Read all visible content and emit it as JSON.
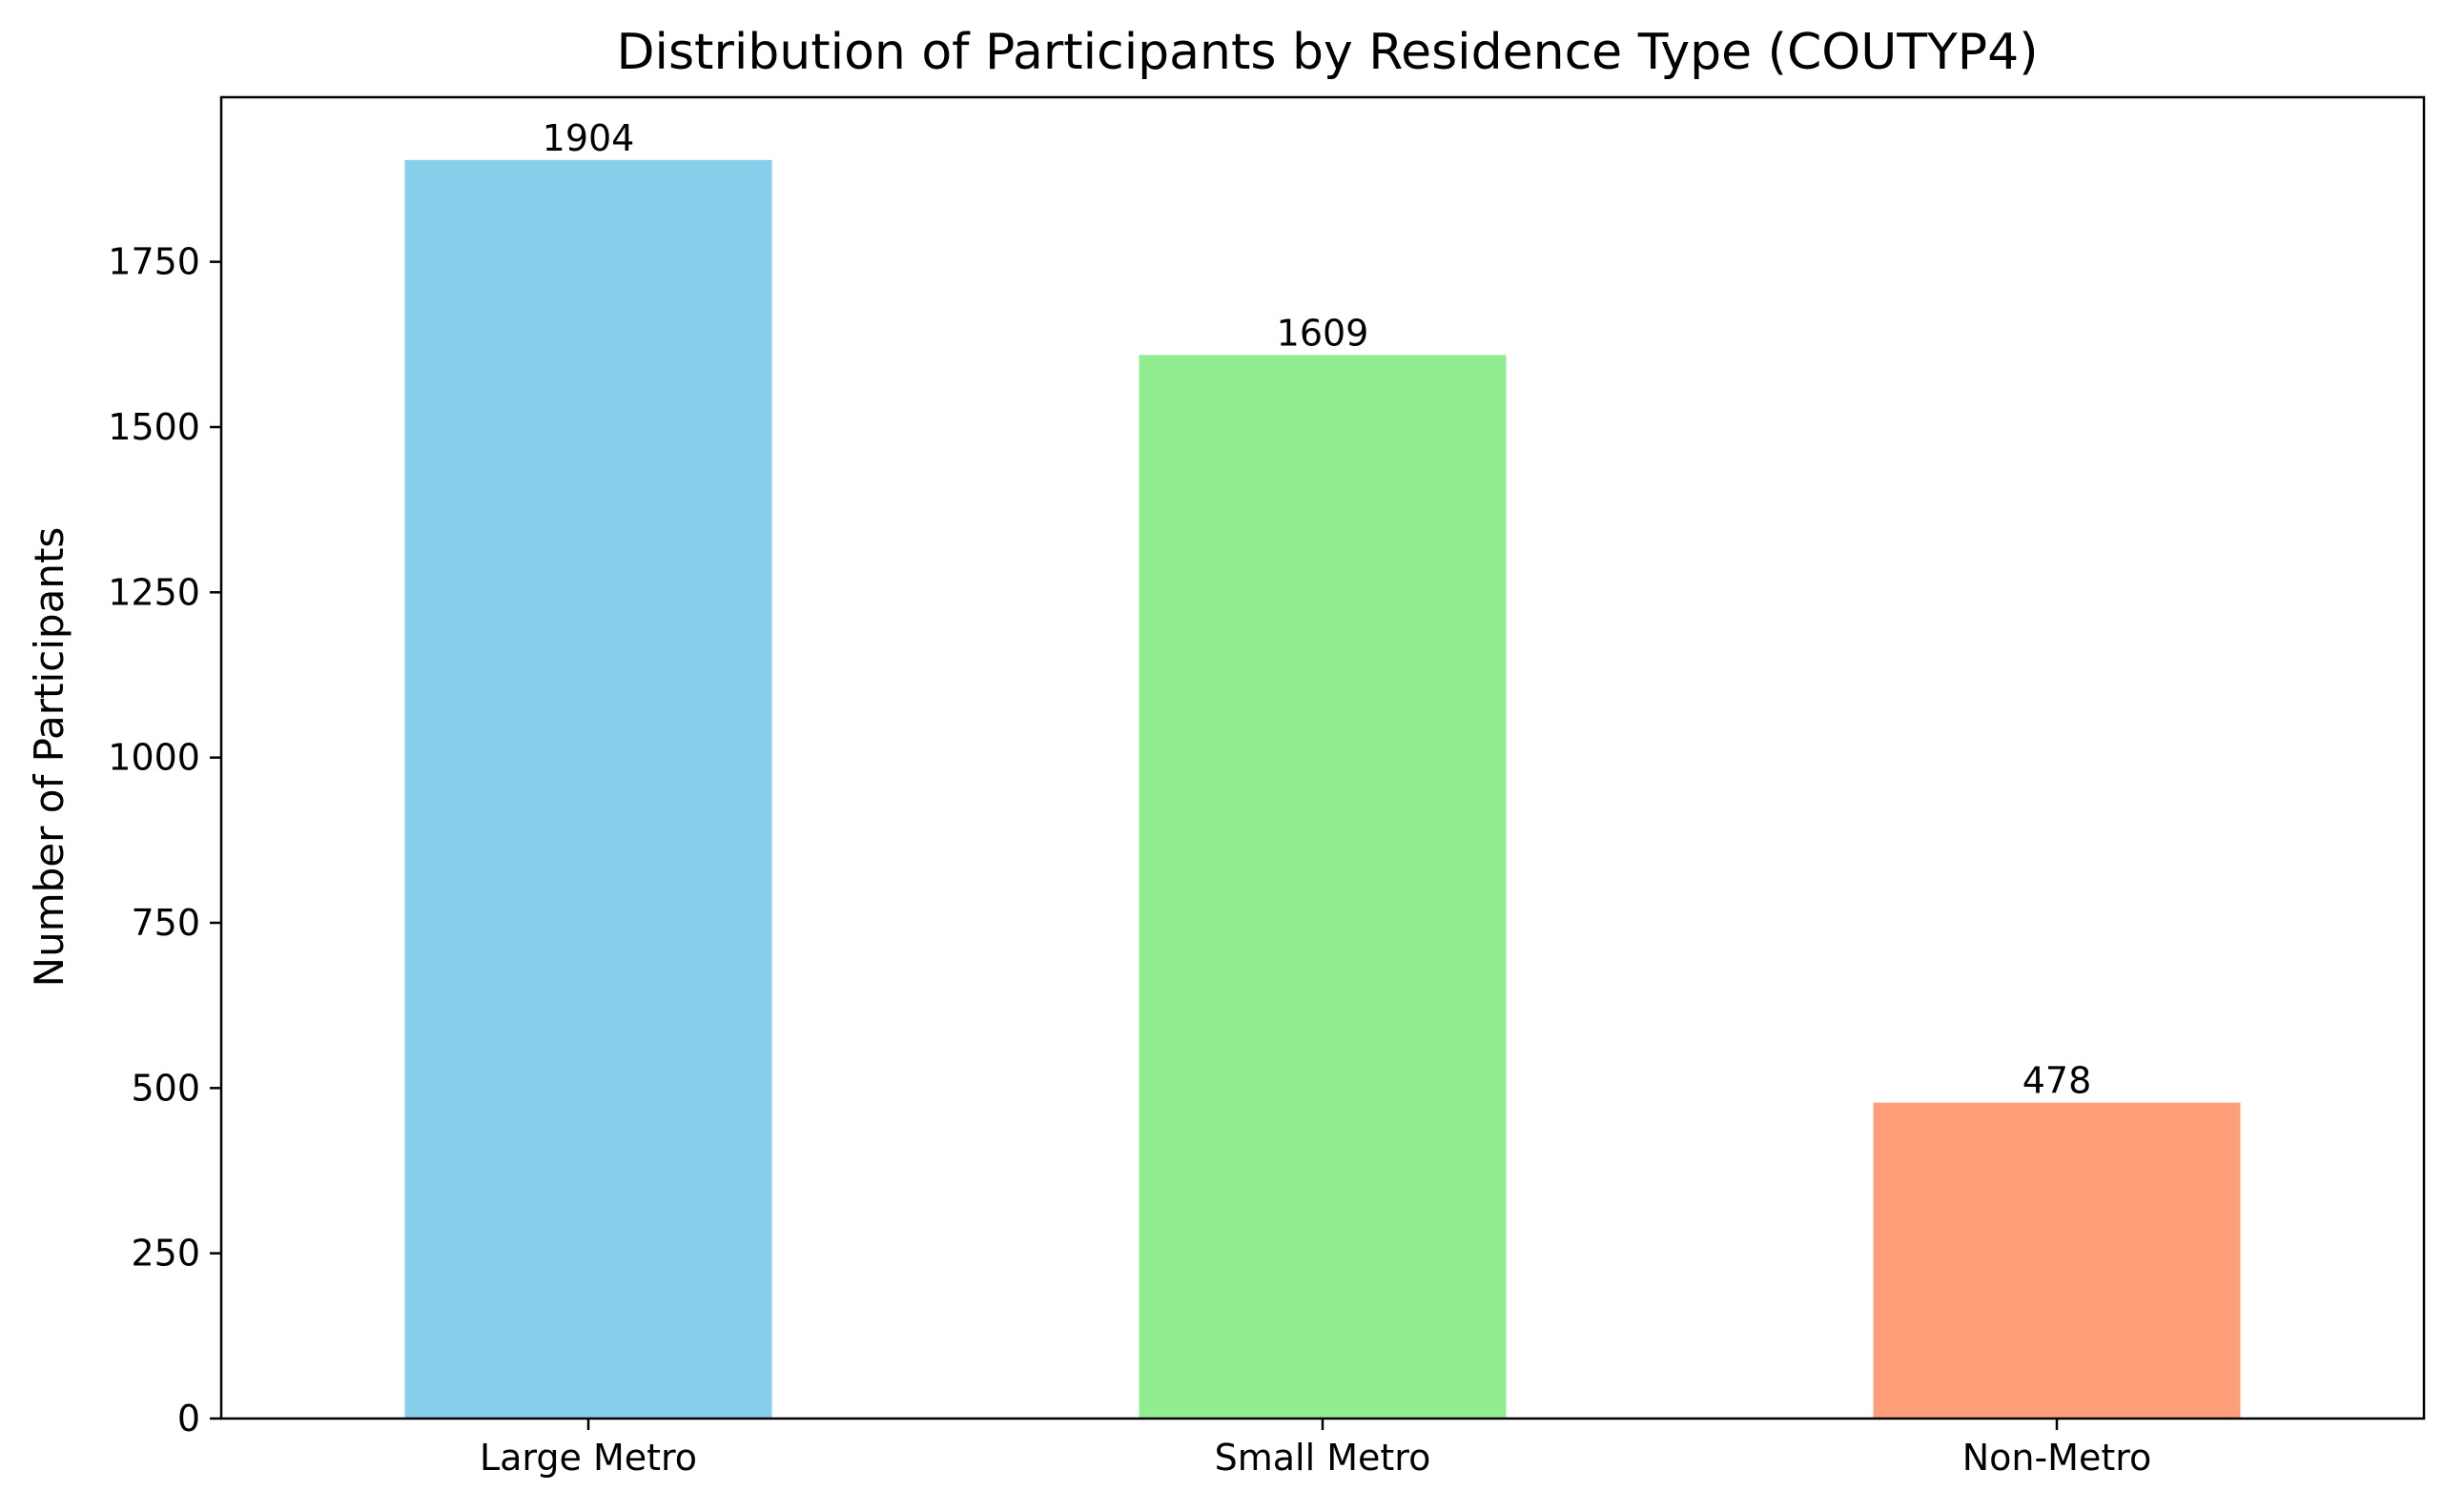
{
  "chart_data": {
    "type": "bar",
    "title": "Distribution of Participants by Residence Type (COUTYP4)",
    "xlabel": "",
    "ylabel": "Number of Participants",
    "categories": [
      "Large Metro",
      "Small Metro",
      "Non-Metro"
    ],
    "values": [
      1904,
      1609,
      478
    ],
    "colors": [
      "#87ceeb",
      "#90ee90",
      "#ffa07a"
    ],
    "data_labels": [
      "1904",
      "1609",
      "478"
    ],
    "ylim": [
      0,
      1999
    ],
    "yticks": [
      0,
      250,
      500,
      750,
      1000,
      1250,
      1500,
      1750
    ],
    "ytick_labels": [
      "0",
      "250",
      "500",
      "750",
      "1000",
      "1250",
      "1500",
      "1750"
    ],
    "grid": false,
    "legend": "none"
  }
}
